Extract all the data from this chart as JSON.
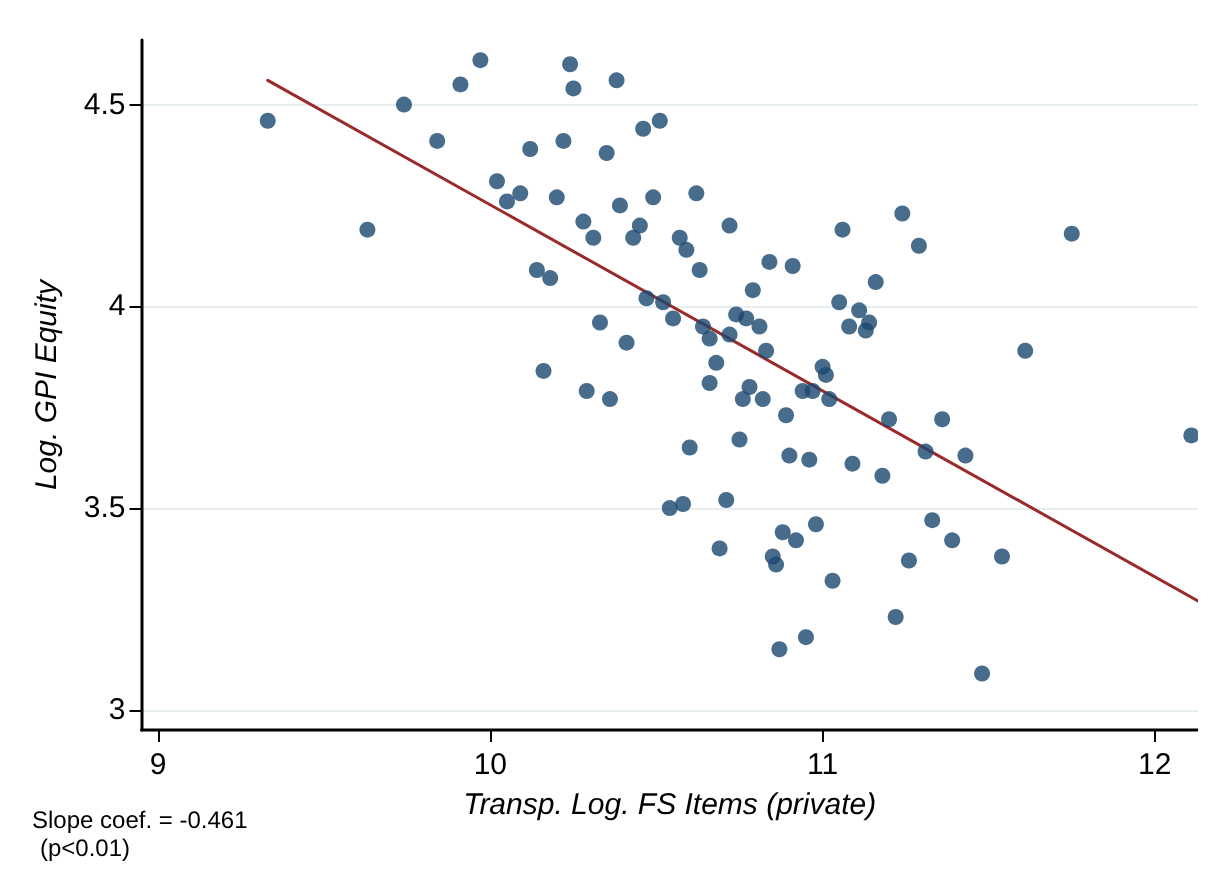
{
  "chart_data": {
    "type": "scatter",
    "xlabel": "Transp. Log. FS Items (private)",
    "ylabel": "Log. GPI Equity",
    "annotations": [
      "Slope coef. = -0.461",
      "(p<0.01)"
    ],
    "xlim": [
      8.95,
      12.13
    ],
    "ylim": [
      2.95,
      4.66
    ],
    "xticks": [
      9,
      10,
      11,
      12
    ],
    "yticks": [
      3,
      3.5,
      4,
      4.5
    ],
    "grid": "y",
    "marker": "circle",
    "series": [
      {
        "color": "#1a476f",
        "x": [
          9.33,
          9.63,
          9.74,
          9.84,
          9.91,
          9.97,
          10.02,
          10.05,
          10.09,
          10.12,
          10.14,
          10.18,
          10.16,
          10.2,
          10.22,
          10.24,
          10.25,
          10.28,
          10.29,
          10.31,
          10.33,
          10.35,
          10.36,
          10.38,
          10.39,
          10.41,
          10.43,
          10.45,
          10.46,
          10.49,
          10.51,
          10.47,
          10.52,
          10.55,
          10.62,
          10.57,
          10.59,
          10.63,
          10.72,
          10.84,
          10.91,
          10.79,
          11.06,
          11.24,
          11.29,
          11.75,
          11.16,
          10.64,
          10.66,
          10.74,
          10.77,
          10.81,
          10.72,
          10.68,
          10.83,
          10.66,
          10.78,
          10.76,
          10.82,
          10.89,
          10.94,
          10.97,
          11.02,
          11.0,
          11.01,
          11.05,
          11.11,
          11.08,
          11.13,
          11.14,
          11.61,
          11.2,
          11.36,
          10.6,
          10.75,
          10.9,
          10.96,
          11.09,
          11.18,
          11.31,
          11.43,
          12.11,
          10.54,
          10.58,
          10.71,
          10.69,
          10.88,
          10.92,
          10.98,
          10.85,
          10.86,
          11.03,
          11.33,
          11.39,
          11.26,
          11.54,
          11.22,
          10.95,
          10.87,
          11.48
        ],
        "values": [
          4.46,
          4.19,
          4.5,
          4.41,
          4.55,
          4.61,
          4.31,
          4.26,
          4.28,
          4.39,
          4.09,
          4.07,
          3.84,
          4.27,
          4.41,
          4.6,
          4.54,
          4.21,
          3.79,
          4.17,
          3.96,
          4.38,
          3.77,
          4.56,
          4.25,
          3.91,
          4.17,
          4.2,
          4.44,
          4.27,
          4.46,
          4.02,
          4.01,
          3.97,
          4.28,
          4.17,
          4.14,
          4.09,
          4.2,
          4.11,
          4.1,
          4.04,
          4.19,
          4.23,
          4.15,
          4.18,
          4.06,
          3.95,
          3.92,
          3.98,
          3.97,
          3.95,
          3.93,
          3.86,
          3.89,
          3.81,
          3.8,
          3.77,
          3.77,
          3.73,
          3.79,
          3.79,
          3.77,
          3.85,
          3.83,
          4.01,
          3.99,
          3.95,
          3.94,
          3.96,
          3.89,
          3.72,
          3.72,
          3.65,
          3.67,
          3.63,
          3.62,
          3.61,
          3.58,
          3.64,
          3.63,
          3.68,
          3.5,
          3.51,
          3.52,
          3.4,
          3.44,
          3.42,
          3.46,
          3.38,
          3.36,
          3.32,
          3.47,
          3.42,
          3.37,
          3.38,
          3.23,
          3.18,
          3.15,
          3.09
        ]
      },
      {
        "type": "line",
        "color": "#9b2b2b",
        "x": [
          9.33,
          12.13
        ],
        "values": [
          4.56,
          3.27
        ],
        "marker": "none"
      }
    ]
  }
}
